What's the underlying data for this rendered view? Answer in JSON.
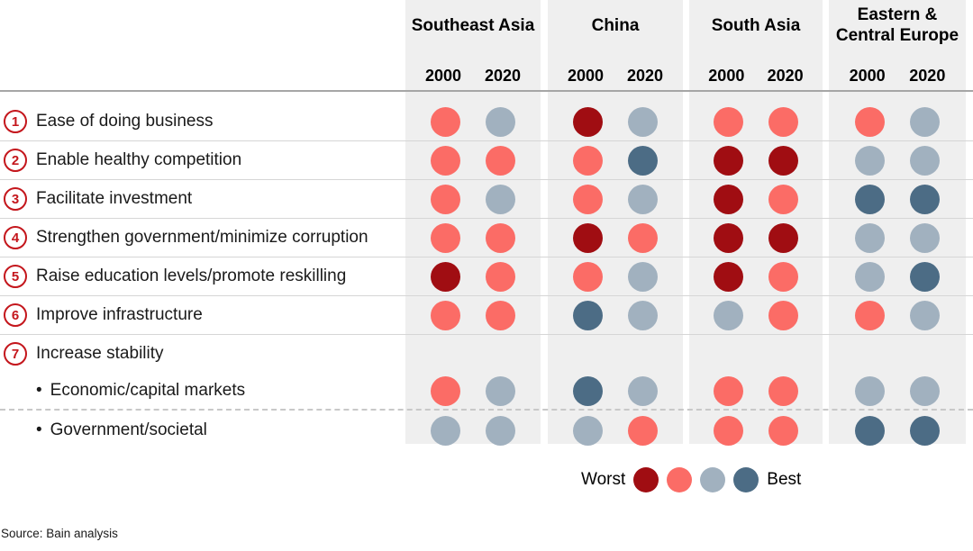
{
  "bullet_char": "•",
  "legend": {
    "worst_label": "Worst",
    "best_label": "Best"
  },
  "footer": {
    "source": "Source: Bain analysis"
  },
  "chart_data": {
    "type": "heatmap",
    "description": "Dot-matrix rating of policy priorities by region for 2000 vs 2020, on a 4-level color scale from Worst to Best",
    "scale": {
      "levels": [
        1,
        2,
        3,
        4
      ],
      "colors": {
        "1": "#a00d12",
        "2": "#fb6c66",
        "3": "#a1b1bf",
        "4": "#4c6c85"
      },
      "level_meaning": {
        "1": "worst",
        "2": "poor",
        "3": "fair",
        "4": "best"
      },
      "start_label": "Worst",
      "end_label": "Best"
    },
    "column_groups": [
      {
        "region": "Southeast Asia",
        "years": [
          "2000",
          "2020"
        ]
      },
      {
        "region": "China",
        "years": [
          "2000",
          "2020"
        ]
      },
      {
        "region": "South Asia",
        "years": [
          "2000",
          "2020"
        ]
      },
      {
        "region": "Eastern & Central Europe",
        "years": [
          "2000",
          "2020"
        ]
      }
    ],
    "columns": [
      "Southeast Asia 2000",
      "Southeast Asia 2020",
      "China 2000",
      "China 2020",
      "South Asia 2000",
      "South Asia 2020",
      "Eastern & Central Europe 2000",
      "Eastern & Central Europe 2020"
    ],
    "rows": [
      {
        "num": "1",
        "label": "Ease of doing business",
        "bullet": false,
        "values": [
          2,
          3,
          1,
          3,
          2,
          2,
          2,
          3
        ]
      },
      {
        "num": "2",
        "label": "Enable healthy competition",
        "bullet": false,
        "values": [
          2,
          2,
          2,
          4,
          1,
          1,
          3,
          3
        ]
      },
      {
        "num": "3",
        "label": "Facilitate investment",
        "bullet": false,
        "values": [
          2,
          3,
          2,
          3,
          1,
          2,
          4,
          4
        ]
      },
      {
        "num": "4",
        "label": "Strengthen government/minimize corruption",
        "bullet": false,
        "values": [
          2,
          2,
          1,
          2,
          1,
          1,
          3,
          3
        ]
      },
      {
        "num": "5",
        "label": "Raise education levels/promote reskilling",
        "bullet": false,
        "values": [
          1,
          2,
          2,
          3,
          1,
          2,
          3,
          4
        ]
      },
      {
        "num": "6",
        "label": "Improve infrastructure",
        "bullet": false,
        "values": [
          2,
          2,
          4,
          3,
          3,
          2,
          2,
          3
        ]
      },
      {
        "num": "7",
        "label": "Increase stability",
        "bullet": false,
        "values": null
      },
      {
        "num": null,
        "label": "Economic/capital markets",
        "bullet": true,
        "values": [
          2,
          3,
          4,
          3,
          2,
          2,
          3,
          3
        ]
      },
      {
        "num": null,
        "label": "Government/societal",
        "bullet": true,
        "values": [
          3,
          3,
          3,
          2,
          2,
          2,
          4,
          4
        ]
      }
    ]
  }
}
